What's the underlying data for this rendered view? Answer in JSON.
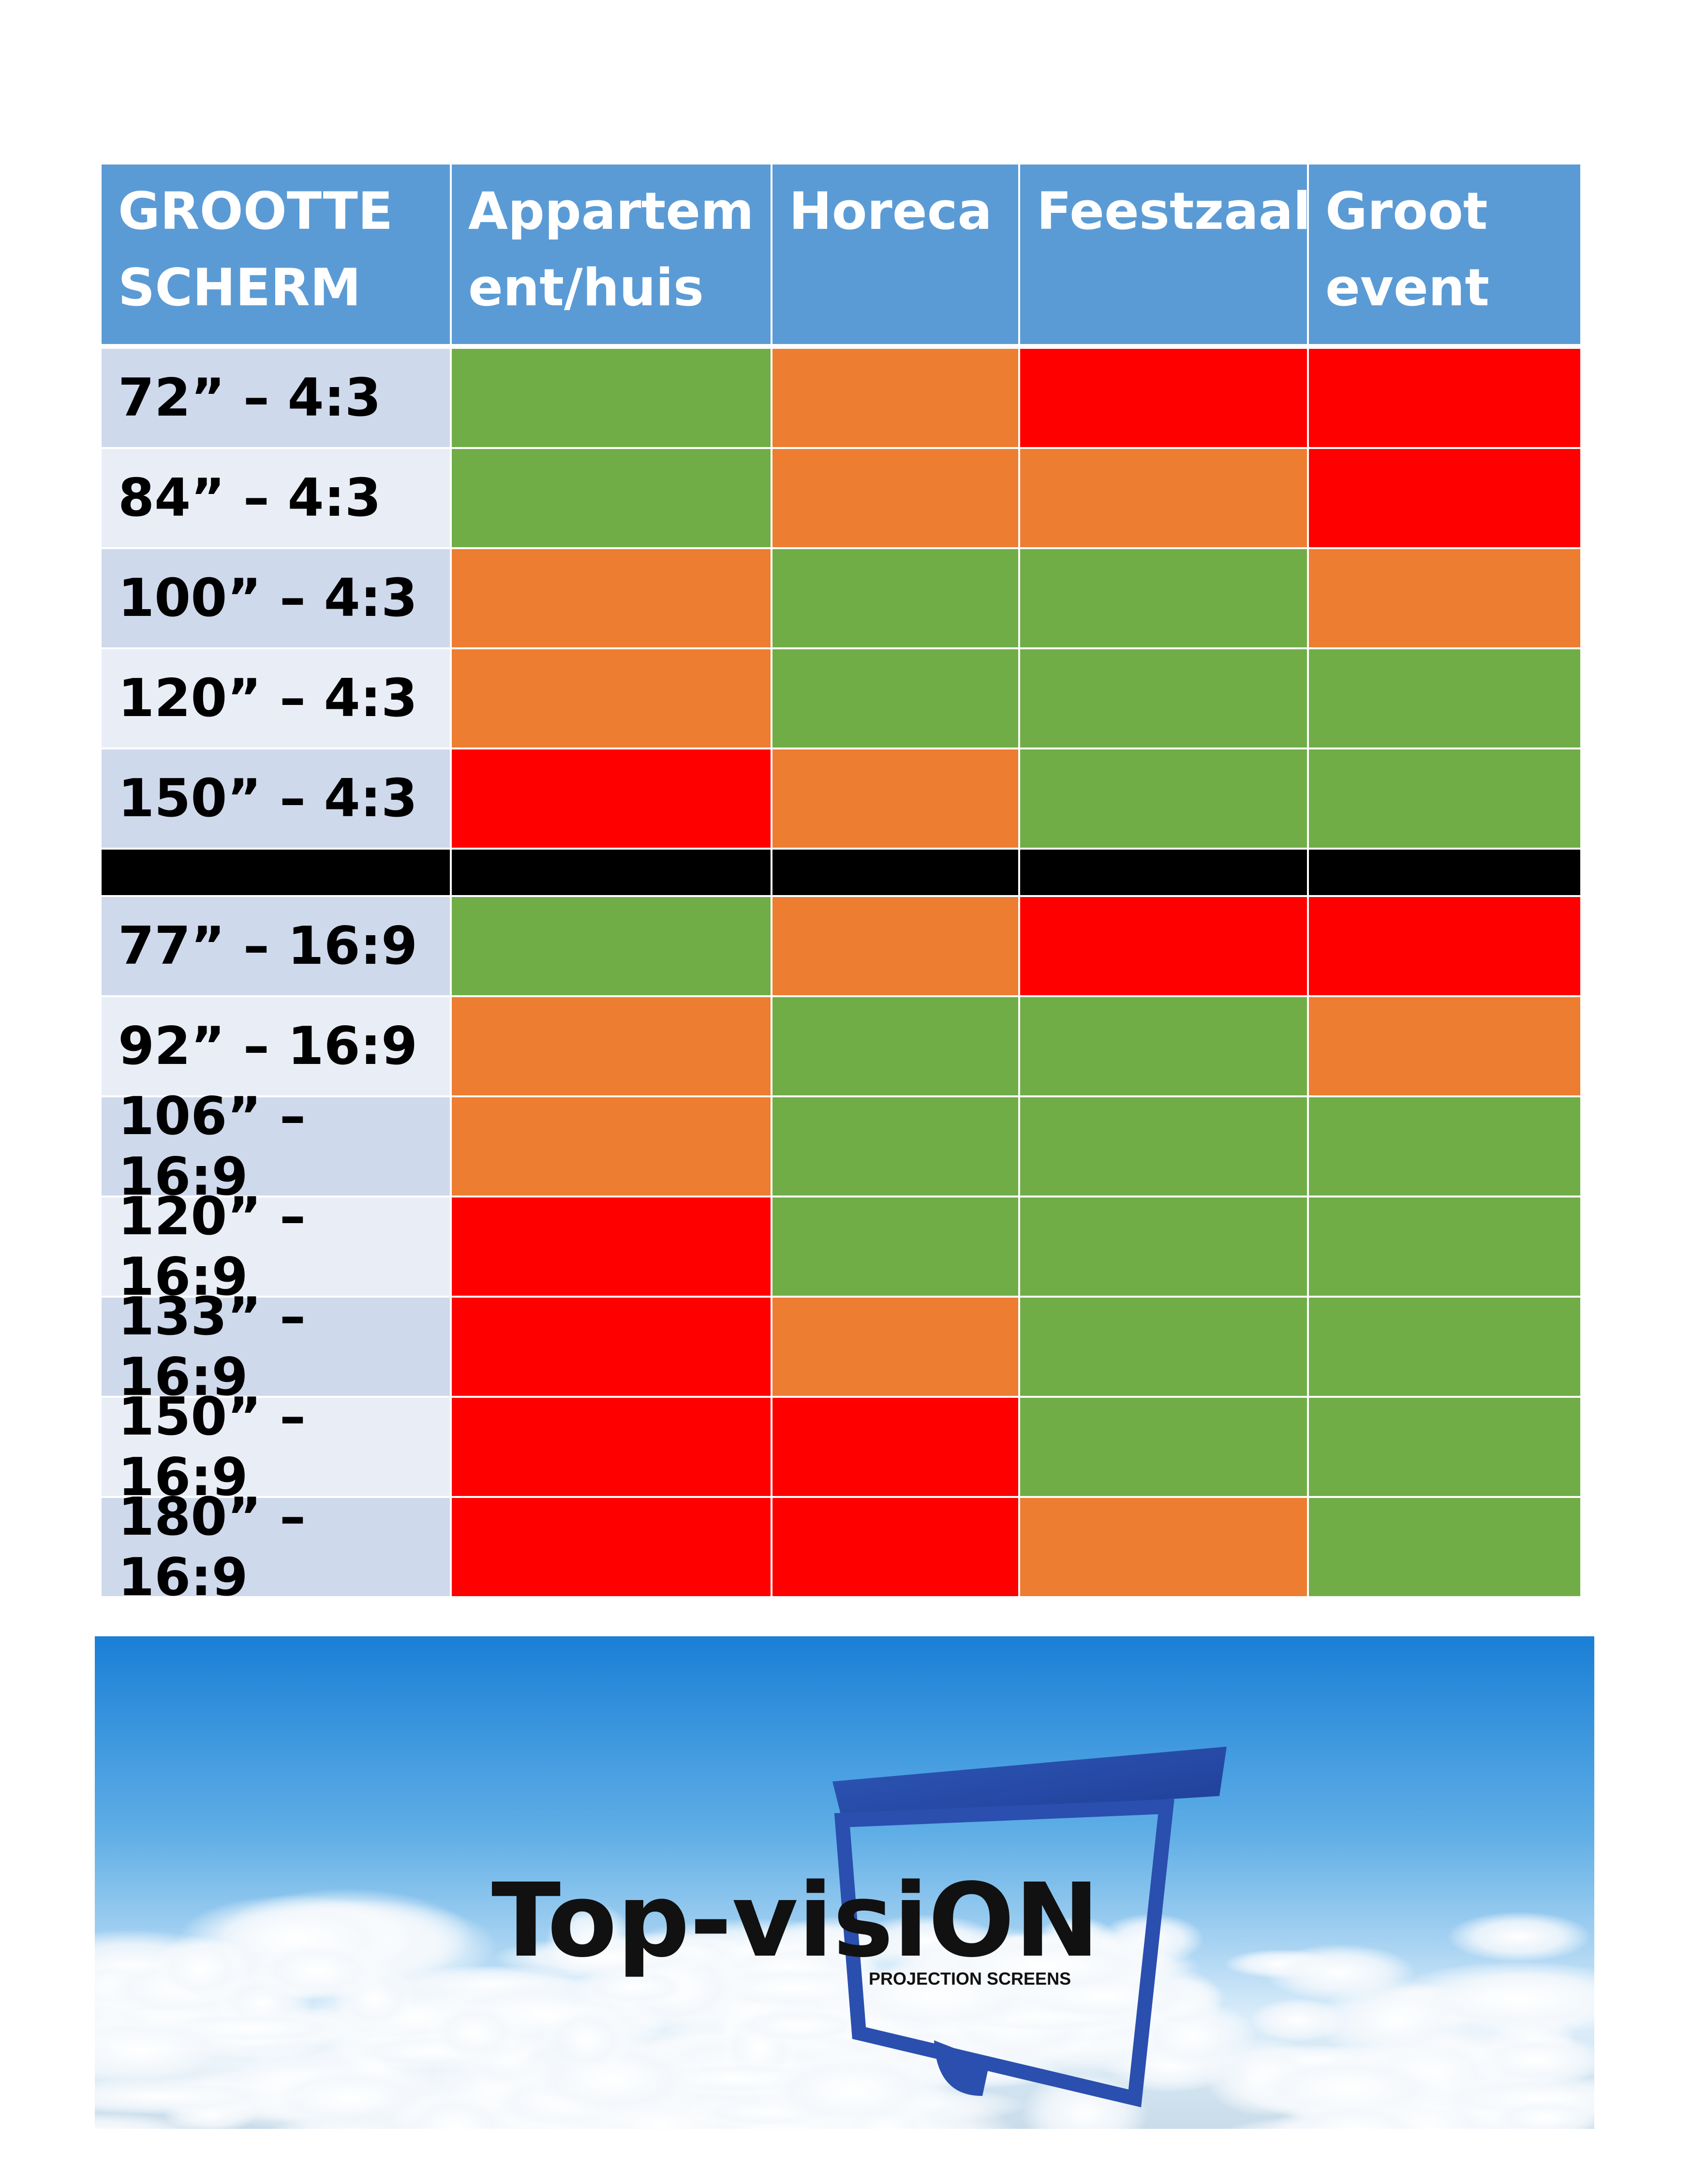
{
  "chart_data": {
    "type": "table",
    "columns": [
      "GROOTTE\nSCHERM",
      "Appartem\nent/huis",
      "Horeca",
      "Feestzaal",
      "Groot\nevent"
    ],
    "rows": [
      {
        "size": "72” – 4:3",
        "ratings": [
          "green",
          "orange",
          "red",
          "red"
        ]
      },
      {
        "size": "84” – 4:3",
        "ratings": [
          "green",
          "orange",
          "orange",
          "red"
        ]
      },
      {
        "size": "100” – 4:3",
        "ratings": [
          "orange",
          "green",
          "green",
          "orange"
        ]
      },
      {
        "size": "120” – 4:3",
        "ratings": [
          "orange",
          "green",
          "green",
          "green"
        ]
      },
      {
        "size": "150” – 4:3",
        "ratings": [
          "red",
          "orange",
          "green",
          "green"
        ]
      },
      {
        "size": "",
        "separator": true
      },
      {
        "size": "77” – 16:9",
        "ratings": [
          "green",
          "orange",
          "red",
          "red"
        ]
      },
      {
        "size": "92” – 16:9",
        "ratings": [
          "orange",
          "green",
          "green",
          "orange"
        ]
      },
      {
        "size": "106” – 16:9",
        "ratings": [
          "orange",
          "green",
          "green",
          "green"
        ]
      },
      {
        "size": "120” – 16:9",
        "ratings": [
          "red",
          "green",
          "green",
          "green"
        ]
      },
      {
        "size": "133” – 16:9",
        "ratings": [
          "red",
          "orange",
          "green",
          "green"
        ]
      },
      {
        "size": "150” – 16:9",
        "ratings": [
          "red",
          "red",
          "green",
          "green"
        ]
      },
      {
        "size": "180” – 16:9",
        "ratings": [
          "red",
          "red",
          "orange",
          "green"
        ]
      }
    ],
    "colors": {
      "green": "#70AD47",
      "orange": "#ED7D31",
      "red": "#FF0000",
      "header": "#5B9BD5",
      "label_dark": "#CFD9EC",
      "label_light": "#E9EEF6",
      "separator": "#000000"
    }
  },
  "logo": {
    "name": "Top-visiON",
    "tagline": "PROJECTION SCREENS",
    "icon": "projection-screen-icon"
  }
}
